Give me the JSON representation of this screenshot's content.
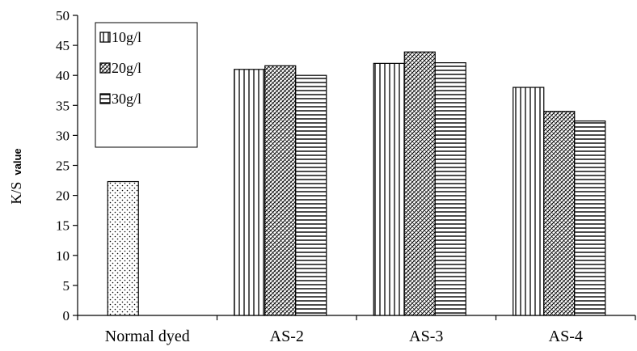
{
  "chart_data": {
    "type": "bar",
    "ylabel_main": "K/S",
    "ylabel_sub": "value",
    "xlabel": "",
    "ylim": [
      0,
      50
    ],
    "ytick_step": 5,
    "yticks": [
      "0",
      "5",
      "10",
      "15",
      "20",
      "25",
      "30",
      "35",
      "40",
      "45",
      "50"
    ],
    "grid": false,
    "legend_position": "top-left",
    "categories": [
      "Normal dyed",
      "AS-2",
      "AS-3",
      "AS-4"
    ],
    "series": [
      {
        "name": "10g/l",
        "pattern": "vertical-lines",
        "values": [
          22.3,
          41.0,
          42.0,
          38.0
        ]
      },
      {
        "name": "20g/l",
        "pattern": "diagonal-cross",
        "values": [
          null,
          41.6,
          43.9,
          34.0
        ]
      },
      {
        "name": "30g/l",
        "pattern": "horizontal-lines",
        "values": [
          null,
          40.0,
          42.1,
          32.4
        ]
      }
    ],
    "single_bar": {
      "category_index": 0,
      "pattern": "dots",
      "value": 22.3
    }
  }
}
